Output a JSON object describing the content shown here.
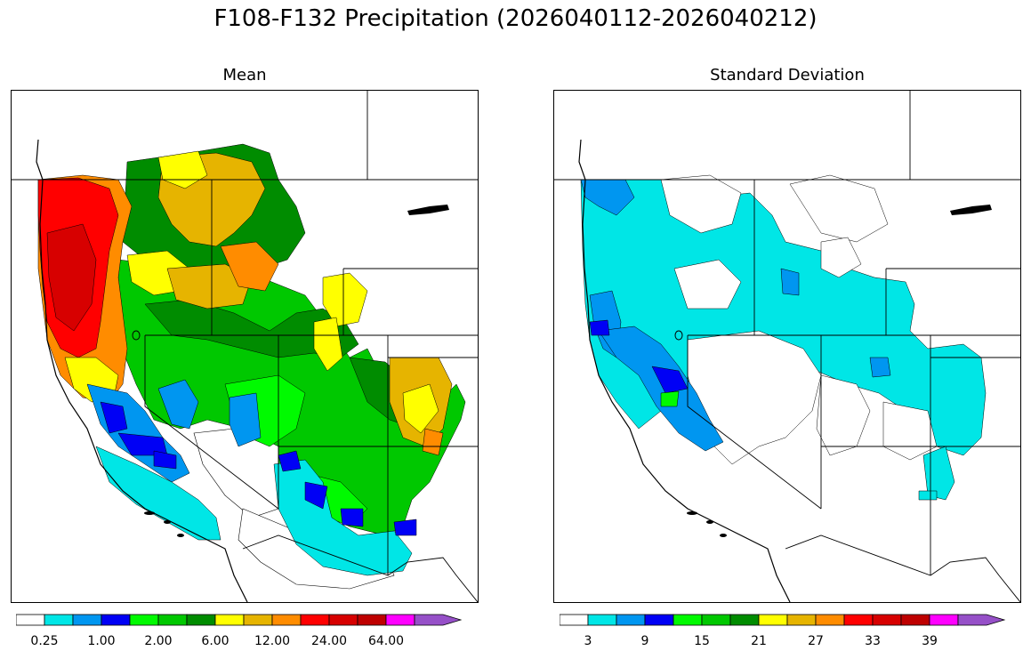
{
  "figure": {
    "title": "F108-F132 Precipitation (2026040112-2026040212)"
  },
  "panels": [
    {
      "title": "Mean",
      "colorbar": {
        "colors": [
          "#ffffff",
          "#00e6e6",
          "#0096f0",
          "#0000f5",
          "#00fa00",
          "#00c800",
          "#008c00",
          "#ffff00",
          "#e6b400",
          "#ff8c00",
          "#ff0000",
          "#d70000",
          "#be0000",
          "#ff00ff",
          "#9650c8"
        ],
        "tick_labels": [
          "0.25",
          "1.00",
          "2.00",
          "6.00",
          "12.00",
          "24.00",
          "64.00"
        ],
        "extend": "max"
      }
    },
    {
      "title": "Standard Deviation",
      "colorbar": {
        "colors": [
          "#ffffff",
          "#00e6e6",
          "#0096f0",
          "#0000f5",
          "#00fa00",
          "#00c800",
          "#008c00",
          "#ffff00",
          "#e6b400",
          "#ff8c00",
          "#ff0000",
          "#d70000",
          "#be0000",
          "#ff00ff",
          "#9650c8"
        ],
        "tick_labels": [
          "3",
          "9",
          "15",
          "21",
          "27",
          "33",
          "39"
        ],
        "extend": "max"
      }
    }
  ]
}
